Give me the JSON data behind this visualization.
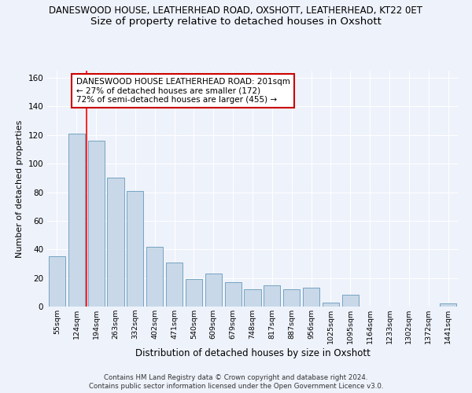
{
  "title": "DANESWOOD HOUSE, LEATHERHEAD ROAD, OXSHOTT, LEATHERHEAD, KT22 0ET",
  "subtitle": "Size of property relative to detached houses in Oxshott",
  "xlabel": "Distribution of detached houses by size in Oxshott",
  "ylabel": "Number of detached properties",
  "categories": [
    "55sqm",
    "124sqm",
    "194sqm",
    "263sqm",
    "332sqm",
    "402sqm",
    "471sqm",
    "540sqm",
    "609sqm",
    "679sqm",
    "748sqm",
    "817sqm",
    "887sqm",
    "956sqm",
    "1025sqm",
    "1095sqm",
    "1164sqm",
    "1233sqm",
    "1302sqm",
    "1372sqm",
    "1441sqm"
  ],
  "values": [
    35,
    121,
    116,
    90,
    81,
    42,
    31,
    19,
    23,
    17,
    12,
    15,
    12,
    13,
    3,
    8,
    0,
    0,
    0,
    0,
    2
  ],
  "bar_color": "#c8d8e8",
  "bar_edge_color": "#6699bb",
  "red_line_x": 1.5,
  "ylim": [
    0,
    165
  ],
  "yticks": [
    0,
    20,
    40,
    60,
    80,
    100,
    120,
    140,
    160
  ],
  "annotation_text": "DANESWOOD HOUSE LEATHERHEAD ROAD: 201sqm\n← 27% of detached houses are smaller (172)\n72% of semi-detached houses are larger (455) →",
  "annotation_box_color": "#ffffff",
  "annotation_box_edge": "#cc0000",
  "footer1": "Contains HM Land Registry data © Crown copyright and database right 2024.",
  "footer2": "Contains public sector information licensed under the Open Government Licence v3.0.",
  "background_color": "#eef2fb",
  "grid_color": "#ffffff",
  "title_fontsize": 8.5,
  "subtitle_fontsize": 9.5,
  "ylabel_fontsize": 8,
  "xlabel_fontsize": 8.5,
  "footer_fontsize": 6.2
}
